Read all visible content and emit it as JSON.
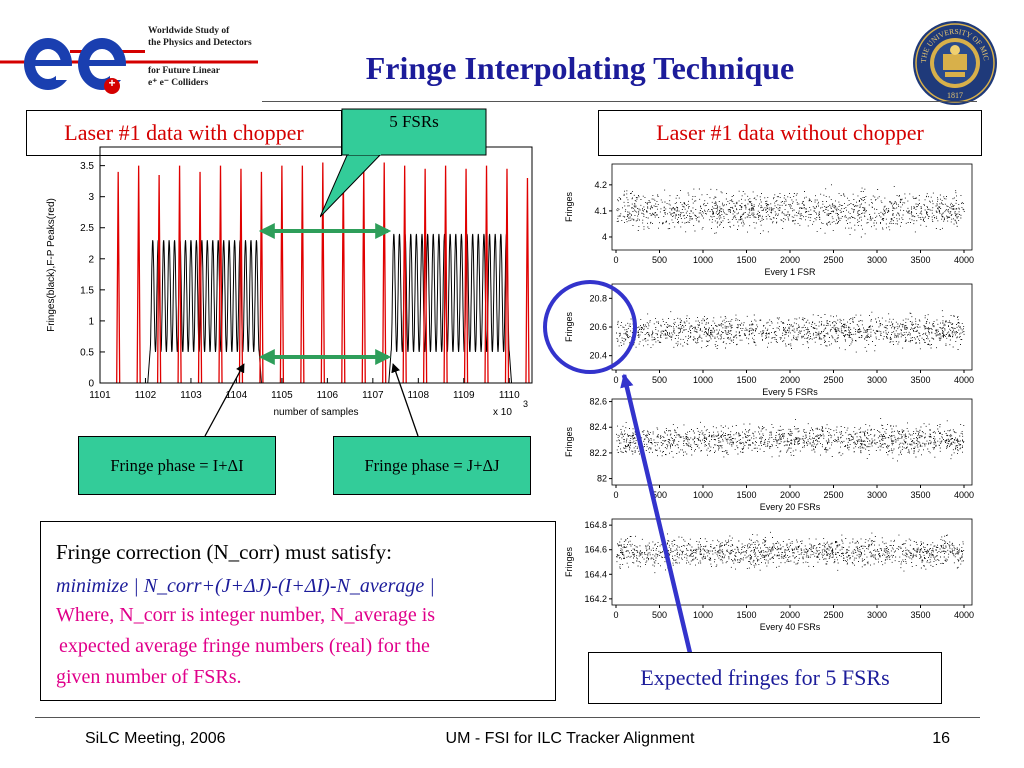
{
  "header": {
    "logo_line1": "Worldwide Study of",
    "logo_line2": "the Physics and Detectors",
    "logo_line3": "for Future Linear",
    "logo_line4": "e⁺ e⁻  Colliders",
    "logo_plus": "+",
    "title": "Fringe Interpolating Technique",
    "seal_ring_text": "THE UNIVERSITY OF MICHIGAN",
    "seal_year": "1817"
  },
  "labels": {
    "with_chopper": "Laser #1 data with chopper",
    "without_chopper": "Laser #1 data without chopper",
    "fsrs_callout": "5 FSRs",
    "phase_i": "Fringe phase = I+ΔI",
    "phase_j": "Fringe phase = J+ΔJ",
    "expected": "Expected fringes for 5 FSRs"
  },
  "textbox": {
    "line1": "Fringe correction (N_corr) must satisfy:",
    "line2": "minimize | N_corr+(J+ΔJ)-(I+ΔI)-N_average |",
    "line3": "Where, N_corr is integer number, N_average is",
    "line4": "expected average fringe numbers (real) for the",
    "line5": "given number of FSRs."
  },
  "footer": {
    "left": "SiLC Meeting, 2006",
    "center": "UM - FSI for ILC Tracker Alignment",
    "page": "16"
  },
  "colors": {
    "title": "#1c1c9a",
    "red_text": "#d40000",
    "magenta": "#e0008a",
    "green_box": "#33cc99",
    "arrow_green": "#2e9e5a",
    "circle_blue": "#3333cc"
  },
  "chart_data": [
    {
      "type": "line",
      "ylabel": "Fringes(black),F-P Peaks(red)",
      "xlabel": "number of samples",
      "x_multiplier": "x 10",
      "x_multiplier_exp": "3",
      "x_ticks": [
        "1101",
        "1102",
        "1103",
        "1104",
        "1105",
        "1106",
        "1107",
        "1108",
        "1109",
        "1110"
      ],
      "y_ticks": [
        "0",
        "0.5",
        "1",
        "1.5",
        "2",
        "2.5",
        "3",
        "3.5"
      ],
      "xlim": [
        1101,
        1110.5
      ],
      "ylim": [
        0,
        3.8
      ],
      "fp_peaks_red_x": [
        1101.4,
        1101.85,
        1102.3,
        1102.75,
        1103.2,
        1103.65,
        1104.1,
        1104.55,
        1105.0,
        1105.45,
        1105.9,
        1106.35,
        1106.8,
        1107.25,
        1107.7,
        1108.15,
        1108.6,
        1109.05,
        1109.5,
        1109.95,
        1110.4
      ],
      "fp_peaks_red_y": [
        3.4,
        3.5,
        3.35,
        3.5,
        3.4,
        3.5,
        3.45,
        3.4,
        3.5,
        3.5,
        3.55,
        3.5,
        3.5,
        3.55,
        3.5,
        3.45,
        3.5,
        3.45,
        3.5,
        3.45,
        3.3
      ],
      "fringe_bursts_black": [
        {
          "x_start": 1102.1,
          "x_end": 1104.5,
          "low": 0.5,
          "high": 2.3,
          "cycles": 20
        },
        {
          "x_start": 1107.4,
          "x_end": 1110.0,
          "low": 0.5,
          "high": 2.4,
          "cycles": 21
        }
      ]
    },
    {
      "type": "scatter",
      "ylabel": "Fringes",
      "xlabel": "Every 1 FSR",
      "x_ticks": [
        "0",
        "500",
        "1000",
        "1500",
        "2000",
        "2500",
        "3000",
        "3500",
        "4000"
      ],
      "y_ticks": [
        "4",
        "4.1",
        "4.2"
      ],
      "ylim": [
        3.95,
        4.28
      ],
      "mean": 4.1,
      "spread": 0.06
    },
    {
      "type": "scatter",
      "ylabel": "Fringes",
      "xlabel": "Every 5 FSRs",
      "x_ticks": [
        "0",
        "500",
        "1000",
        "1500",
        "2000",
        "2500",
        "3000",
        "3500",
        "4000"
      ],
      "y_ticks": [
        "20.4",
        "20.6",
        "20.8"
      ],
      "ylim": [
        20.3,
        20.9
      ],
      "mean": 20.57,
      "spread": 0.09
    },
    {
      "type": "scatter",
      "ylabel": "Fringes",
      "xlabel": "Every 20 FSRs",
      "x_ticks": [
        "0",
        "500",
        "1000",
        "1500",
        "2000",
        "2500",
        "3000",
        "3500",
        "4000"
      ],
      "y_ticks": [
        "82",
        "82.2",
        "82.4",
        "82.6"
      ],
      "ylim": [
        81.95,
        82.62
      ],
      "mean": 82.3,
      "spread": 0.1
    },
    {
      "type": "scatter",
      "ylabel": "Fringes",
      "xlabel": "Every 40 FSRs",
      "x_ticks": [
        "0",
        "500",
        "1000",
        "1500",
        "2000",
        "2500",
        "3000",
        "3500",
        "4000"
      ],
      "y_ticks": [
        "164.2",
        "164.4",
        "164.6",
        "164.8"
      ],
      "ylim": [
        164.15,
        164.85
      ],
      "mean": 164.58,
      "spread": 0.1
    }
  ]
}
